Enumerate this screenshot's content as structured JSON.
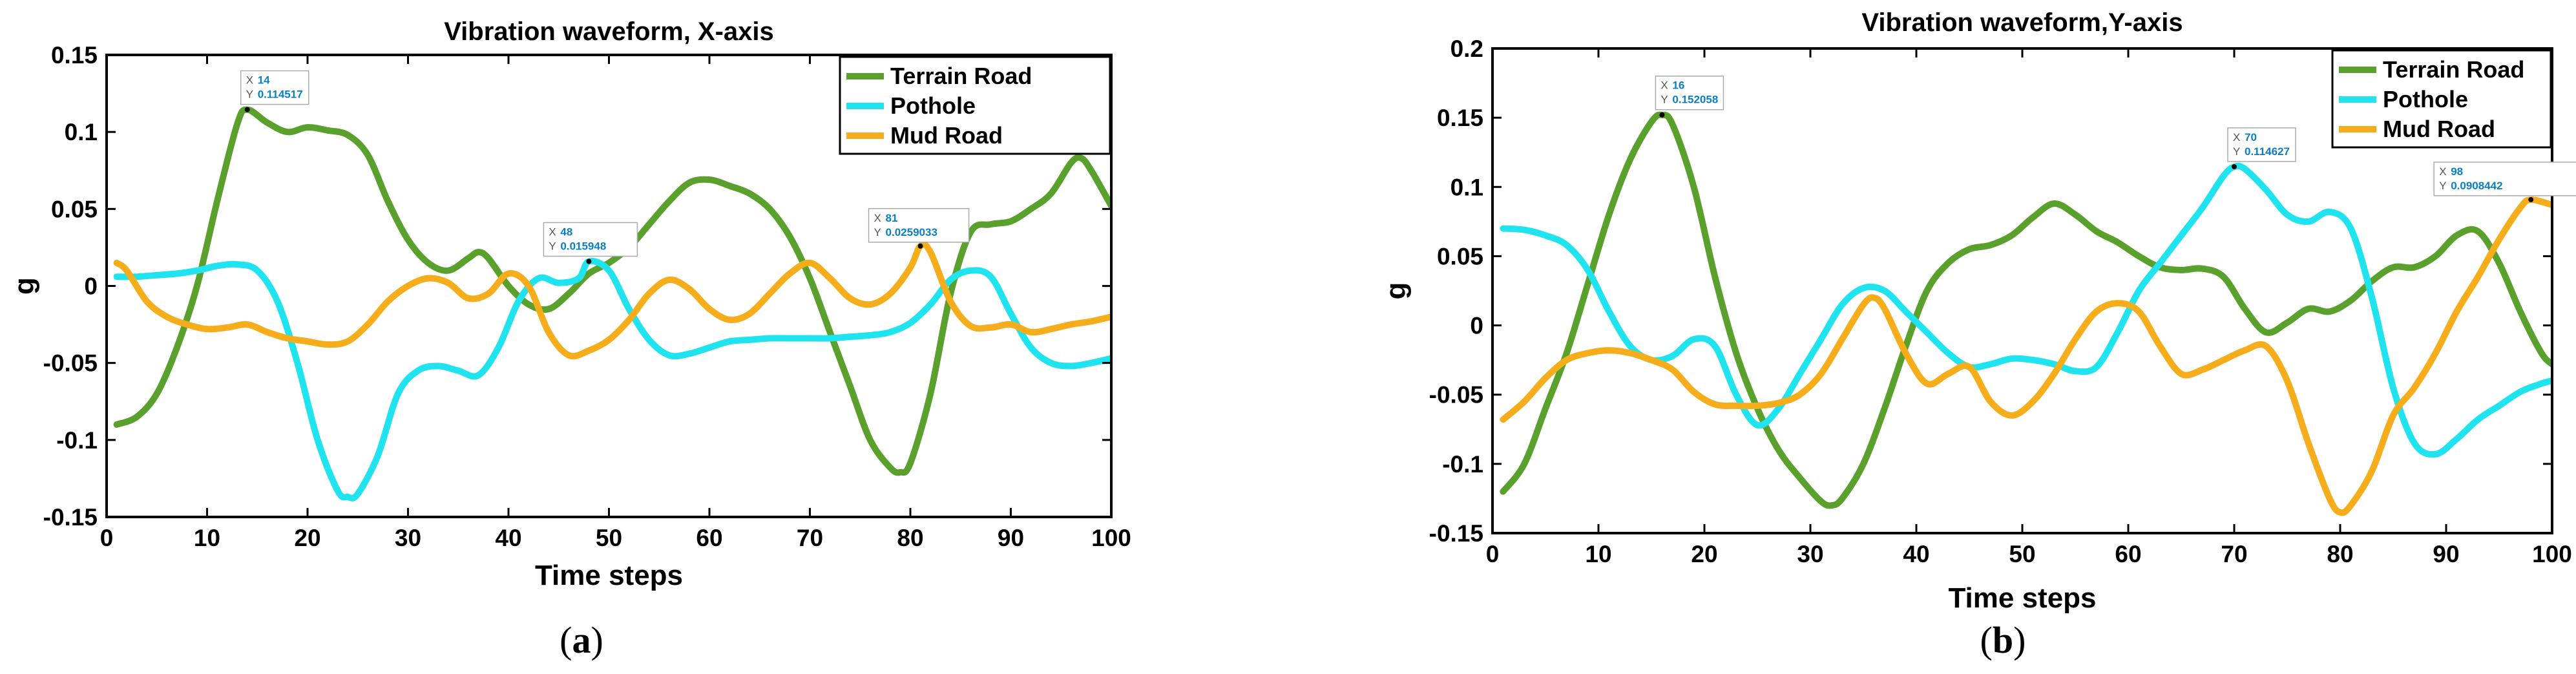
{
  "chart_data": [
    {
      "type": "line",
      "title": "Vibration waveform, X-axis",
      "xlabel": "Time steps",
      "ylabel": "g",
      "xlim": [
        0,
        100
      ],
      "ylim": [
        -0.15,
        0.15
      ],
      "xticks": [
        "0",
        "10",
        "20",
        "30",
        "40",
        "50",
        "60",
        "70",
        "80",
        "90",
        "100"
      ],
      "yticks": [
        "-0.15",
        "-0.1",
        "-0.05",
        "0",
        "0.05",
        "0.1",
        "0.15"
      ],
      "legend_position": "top-right",
      "caption": "a",
      "series": [
        {
          "name": "Terrain Road",
          "color": "#5aa02c",
          "x": [
            1,
            3,
            5,
            7,
            9,
            11,
            13,
            14,
            16,
            18,
            20,
            22,
            24,
            26,
            28,
            30,
            32,
            34,
            36,
            37,
            38,
            40,
            42,
            44,
            46,
            48,
            50,
            52,
            54,
            56,
            58,
            60,
            62,
            64,
            66,
            68,
            70,
            72,
            74,
            76,
            78,
            79,
            80,
            82,
            84,
            86,
            88,
            90,
            92,
            94,
            96,
            97,
            98,
            100
          ],
          "y": [
            -0.09,
            -0.085,
            -0.07,
            -0.04,
            0.0,
            0.055,
            0.105,
            0.1145,
            0.106,
            0.1,
            0.103,
            0.101,
            0.098,
            0.085,
            0.055,
            0.03,
            0.015,
            0.01,
            0.018,
            0.022,
            0.018,
            0.0,
            -0.012,
            -0.015,
            -0.005,
            0.008,
            0.015,
            0.025,
            0.04,
            0.055,
            0.067,
            0.069,
            0.065,
            0.06,
            0.05,
            0.032,
            0.005,
            -0.03,
            -0.065,
            -0.1,
            -0.118,
            -0.121,
            -0.115,
            -0.07,
            -0.005,
            0.035,
            0.04,
            0.042,
            0.05,
            0.06,
            0.08,
            0.083,
            0.075,
            0.052
          ]
        },
        {
          "name": "Pothole",
          "color": "#1fe3ee",
          "x": [
            1,
            3,
            5,
            7,
            9,
            11,
            13,
            15,
            17,
            19,
            21,
            23,
            24,
            25,
            27,
            29,
            31,
            33,
            35,
            37,
            39,
            41,
            43,
            45,
            47,
            48,
            50,
            52,
            54,
            56,
            58,
            60,
            62,
            64,
            66,
            68,
            70,
            72,
            74,
            76,
            78,
            80,
            82,
            84,
            86,
            88,
            90,
            92,
            94,
            96,
            98,
            100
          ],
          "y": [
            0.006,
            0.006,
            0.007,
            0.008,
            0.01,
            0.013,
            0.014,
            0.01,
            -0.01,
            -0.05,
            -0.1,
            -0.133,
            -0.137,
            -0.135,
            -0.11,
            -0.07,
            -0.055,
            -0.052,
            -0.055,
            -0.058,
            -0.04,
            -0.01,
            0.005,
            0.002,
            0.005,
            0.0159,
            0.01,
            -0.015,
            -0.035,
            -0.045,
            -0.044,
            -0.04,
            -0.036,
            -0.035,
            -0.034,
            -0.034,
            -0.034,
            -0.034,
            -0.033,
            -0.032,
            -0.03,
            -0.024,
            -0.012,
            0.004,
            0.01,
            0.006,
            -0.018,
            -0.04,
            -0.05,
            -0.052,
            -0.05,
            -0.047
          ]
        },
        {
          "name": "Mud Road",
          "color": "#f5ad1c",
          "x": [
            1,
            2,
            4,
            6,
            8,
            10,
            12,
            14,
            16,
            18,
            20,
            22,
            24,
            26,
            28,
            30,
            32,
            34,
            36,
            38,
            40,
            42,
            44,
            46,
            48,
            50,
            52,
            54,
            56,
            58,
            60,
            62,
            64,
            66,
            68,
            70,
            72,
            74,
            76,
            78,
            80,
            81,
            82,
            84,
            86,
            88,
            90,
            92,
            94,
            96,
            98,
            100
          ],
          "y": [
            0.015,
            0.01,
            -0.01,
            -0.02,
            -0.025,
            -0.028,
            -0.027,
            -0.025,
            -0.03,
            -0.034,
            -0.036,
            -0.038,
            -0.036,
            -0.025,
            -0.01,
            0.0,
            0.005,
            0.002,
            -0.008,
            -0.005,
            0.008,
            0.0,
            -0.03,
            -0.045,
            -0.042,
            -0.035,
            -0.022,
            -0.005,
            0.004,
            -0.002,
            -0.015,
            -0.022,
            -0.018,
            -0.005,
            0.008,
            0.015,
            0.005,
            -0.008,
            -0.012,
            -0.005,
            0.012,
            0.0259,
            0.022,
            -0.01,
            -0.026,
            -0.027,
            -0.025,
            -0.03,
            -0.028,
            -0.025,
            -0.023,
            -0.02
          ]
        }
      ],
      "datatips": [
        {
          "x_label": "X",
          "x": "14",
          "y_label": "Y",
          "y": "0.114517",
          "at": [
            14,
            0.114517
          ]
        },
        {
          "x_label": "X",
          "x": "48",
          "y_label": "Y",
          "y": "0.015948",
          "at": [
            48,
            0.015948
          ]
        },
        {
          "x_label": "X",
          "x": "81",
          "y_label": "Y",
          "y": "0.0259033",
          "at": [
            81,
            0.0259033
          ]
        }
      ]
    },
    {
      "type": "line",
      "title": "Vibration waveform,Y-axis",
      "xlabel": "Time steps",
      "ylabel": "g",
      "xlim": [
        0,
        100
      ],
      "ylim": [
        -0.15,
        0.2
      ],
      "xticks": [
        "0",
        "10",
        "20",
        "30",
        "40",
        "50",
        "60",
        "70",
        "80",
        "90",
        "100"
      ],
      "yticks": [
        "-0.15",
        "-0.1",
        "-0.05",
        "0",
        "0.05",
        "0.1",
        "0.15",
        "0.2"
      ],
      "legend_position": "top-right",
      "caption": "b",
      "series": [
        {
          "name": "Terrain Road",
          "color": "#5aa02c",
          "x": [
            1,
            3,
            5,
            7,
            9,
            11,
            13,
            15,
            16,
            17,
            19,
            21,
            23,
            25,
            27,
            29,
            31,
            32,
            33,
            35,
            37,
            39,
            41,
            43,
            45,
            47,
            49,
            51,
            53,
            55,
            57,
            59,
            61,
            63,
            65,
            67,
            69,
            71,
            73,
            75,
            77,
            79,
            81,
            83,
            85,
            87,
            89,
            91,
            93,
            95,
            97,
            99,
            100
          ],
          "y": [
            -0.12,
            -0.1,
            -0.06,
            -0.02,
            0.03,
            0.08,
            0.12,
            0.147,
            0.152,
            0.145,
            0.1,
            0.035,
            -0.02,
            -0.06,
            -0.09,
            -0.11,
            -0.127,
            -0.13,
            -0.125,
            -0.1,
            -0.06,
            -0.015,
            0.025,
            0.045,
            0.055,
            0.058,
            0.065,
            0.078,
            0.088,
            0.08,
            0.068,
            0.06,
            0.05,
            0.042,
            0.04,
            0.041,
            0.035,
            0.012,
            -0.005,
            0.002,
            0.012,
            0.01,
            0.018,
            0.032,
            0.042,
            0.042,
            0.05,
            0.065,
            0.068,
            0.045,
            0.01,
            -0.02,
            -0.028
          ]
        },
        {
          "name": "Pothole",
          "color": "#1fe3ee",
          "x": [
            1,
            3,
            5,
            7,
            9,
            11,
            13,
            15,
            17,
            19,
            21,
            23,
            25,
            27,
            29,
            31,
            33,
            35,
            37,
            39,
            41,
            43,
            45,
            47,
            49,
            51,
            53,
            55,
            57,
            59,
            61,
            63,
            65,
            67,
            69,
            70,
            71,
            73,
            75,
            77,
            79,
            81,
            83,
            85,
            87,
            89,
            91,
            93,
            95,
            97,
            99,
            100
          ],
          "y": [
            0.07,
            0.069,
            0.065,
            0.058,
            0.04,
            0.01,
            -0.015,
            -0.025,
            -0.022,
            -0.01,
            -0.015,
            -0.05,
            -0.072,
            -0.06,
            -0.035,
            -0.01,
            0.015,
            0.027,
            0.025,
            0.01,
            -0.005,
            -0.02,
            -0.03,
            -0.028,
            -0.024,
            -0.025,
            -0.028,
            -0.033,
            -0.03,
            -0.005,
            0.025,
            0.045,
            0.065,
            0.085,
            0.108,
            0.1146,
            0.113,
            0.098,
            0.08,
            0.075,
            0.082,
            0.07,
            0.02,
            -0.045,
            -0.085,
            -0.093,
            -0.082,
            -0.068,
            -0.058,
            -0.048,
            -0.042,
            -0.04
          ]
        },
        {
          "name": "Mud Road",
          "color": "#f5ad1c",
          "x": [
            1,
            3,
            5,
            7,
            9,
            11,
            13,
            15,
            17,
            19,
            21,
            23,
            25,
            27,
            29,
            31,
            33,
            35,
            36,
            37,
            39,
            41,
            43,
            45,
            47,
            49,
            51,
            53,
            55,
            57,
            59,
            61,
            63,
            65,
            67,
            69,
            71,
            73,
            75,
            77,
            79,
            80,
            81,
            83,
            85,
            87,
            89,
            91,
            93,
            95,
            97,
            98,
            100
          ],
          "y": [
            -0.068,
            -0.055,
            -0.038,
            -0.025,
            -0.02,
            -0.018,
            -0.02,
            -0.025,
            -0.032,
            -0.048,
            -0.057,
            -0.058,
            -0.058,
            -0.056,
            -0.05,
            -0.035,
            -0.01,
            0.015,
            0.02,
            0.012,
            -0.02,
            -0.042,
            -0.035,
            -0.03,
            -0.055,
            -0.065,
            -0.055,
            -0.035,
            -0.01,
            0.01,
            0.016,
            0.01,
            -0.015,
            -0.035,
            -0.032,
            -0.025,
            -0.018,
            -0.015,
            -0.04,
            -0.085,
            -0.125,
            -0.135,
            -0.13,
            -0.105,
            -0.065,
            -0.045,
            -0.02,
            0.01,
            0.035,
            0.062,
            0.085,
            0.0908,
            0.087
          ]
        }
      ],
      "datatips": [
        {
          "x_label": "X",
          "x": "16",
          "y_label": "Y",
          "y": "0.152058",
          "at": [
            16,
            0.152058
          ]
        },
        {
          "x_label": "X",
          "x": "70",
          "y_label": "Y",
          "y": "0.114627",
          "at": [
            70,
            0.114627
          ]
        },
        {
          "x_label": "X",
          "x": "98",
          "y_label": "Y",
          "y": "0.0908442",
          "at": [
            98,
            0.0908442
          ]
        }
      ]
    }
  ]
}
